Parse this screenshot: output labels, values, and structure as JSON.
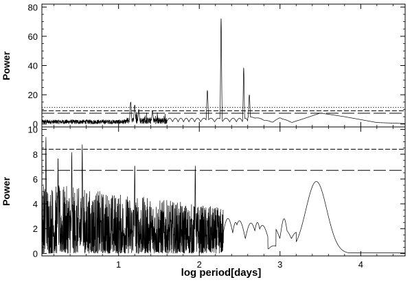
{
  "chart_data": [
    {
      "type": "line",
      "panel": "top",
      "xlabel": "",
      "ylabel": "Power",
      "xlim": [
        0.05,
        4.55
      ],
      "ylim": [
        -2,
        82
      ],
      "yticks": [
        "0",
        "20",
        "40",
        "60",
        "80"
      ],
      "xticks": [
        1,
        2,
        3,
        4
      ],
      "threshold_lines": [
        {
          "style": "dotted",
          "value": 11.4
        },
        {
          "style": "dashed",
          "value": 9.0
        },
        {
          "style": "long-dashed",
          "value": 7.4
        }
      ],
      "peaks": [
        {
          "x": 1.15,
          "y": 15
        },
        {
          "x": 1.2,
          "y": 13
        },
        {
          "x": 1.25,
          "y": 10
        },
        {
          "x": 1.42,
          "y": 9
        },
        {
          "x": 2.1,
          "y": 23
        },
        {
          "x": 2.27,
          "y": 72.5
        },
        {
          "x": 2.55,
          "y": 38.5
        },
        {
          "x": 2.62,
          "y": 20
        }
      ],
      "envelope": [
        {
          "x": 2.7,
          "y": 4
        },
        {
          "x": 2.9,
          "y": 1
        },
        {
          "x": 3.0,
          "y": 4
        },
        {
          "x": 3.15,
          "y": 1
        },
        {
          "x": 3.5,
          "y": 7.5
        },
        {
          "x": 3.8,
          "y": 5
        },
        {
          "x": 4.2,
          "y": 1
        },
        {
          "x": 4.55,
          "y": 0.3
        }
      ]
    },
    {
      "type": "line",
      "panel": "bottom",
      "xlabel": "log period[days]",
      "ylabel": "Power",
      "xlim": [
        0.05,
        4.55
      ],
      "ylim": [
        -0.2,
        10.2
      ],
      "yticks": [
        "0",
        "2",
        "4",
        "6",
        "8",
        "10"
      ],
      "xticks": [
        "1",
        "2",
        "3",
        "4"
      ],
      "threshold_lines": [
        {
          "style": "dashed",
          "value": 8.4
        },
        {
          "style": "long-dashed",
          "value": 6.7
        }
      ],
      "peaks": [
        {
          "x": 0.1,
          "y": 9.4
        },
        {
          "x": 0.55,
          "y": 8.8
        },
        {
          "x": 0.42,
          "y": 8.2
        },
        {
          "x": 0.25,
          "y": 7.8
        },
        {
          "x": 1.2,
          "y": 7.2
        },
        {
          "x": 1.95,
          "y": 7.1
        },
        {
          "x": 2.45,
          "y": 2.5
        },
        {
          "x": 2.72,
          "y": 2.5
        },
        {
          "x": 3.05,
          "y": 2.8
        },
        {
          "x": 3.45,
          "y": 5.8
        }
      ]
    }
  ]
}
